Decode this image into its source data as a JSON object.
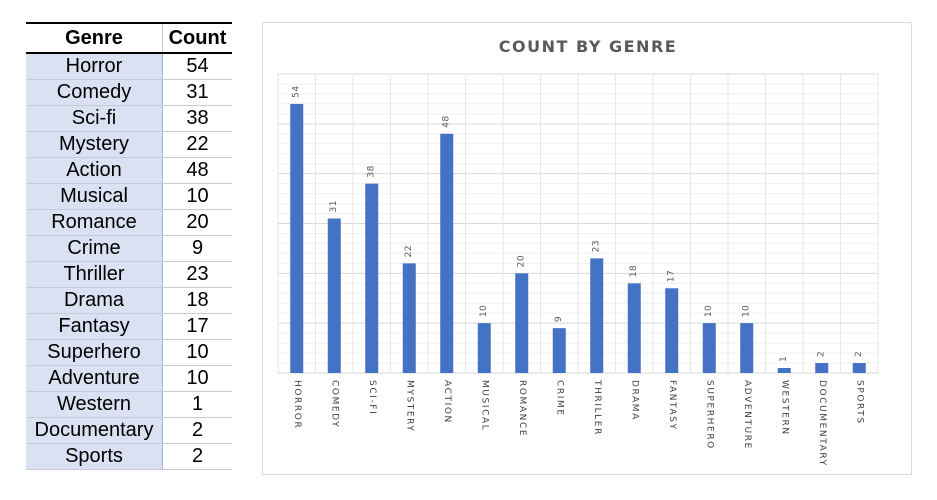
{
  "table": {
    "headers": [
      "Genre",
      "Count"
    ],
    "rows": [
      {
        "genre": "Horror",
        "count": "54"
      },
      {
        "genre": "Comedy",
        "count": "31"
      },
      {
        "genre": "Sci-fi",
        "count": "38"
      },
      {
        "genre": "Mystery",
        "count": "22"
      },
      {
        "genre": "Action",
        "count": "48"
      },
      {
        "genre": "Musical",
        "count": "10"
      },
      {
        "genre": "Romance",
        "count": "20"
      },
      {
        "genre": "Crime",
        "count": "9"
      },
      {
        "genre": "Thriller",
        "count": "23"
      },
      {
        "genre": "Drama",
        "count": "18"
      },
      {
        "genre": "Fantasy",
        "count": "17"
      },
      {
        "genre": "Superhero",
        "count": "10"
      },
      {
        "genre": "Adventure",
        "count": "10"
      },
      {
        "genre": "Western",
        "count": "1"
      },
      {
        "genre": "Documentary",
        "count": "2"
      },
      {
        "genre": "Sports",
        "count": "2"
      }
    ]
  },
  "chart_data": {
    "type": "bar",
    "title": "COUNT BY GENRE",
    "categories": [
      "HORROR",
      "COMEDY",
      "SCI-FI",
      "MYSTERY",
      "ACTION",
      "MUSICAL",
      "ROMANCE",
      "CRIME",
      "THRILLER",
      "DRAMA",
      "FANTASY",
      "SUPERHERO",
      "ADVENTURE",
      "WESTERN",
      "DOCUMENTARY",
      "SPORTS"
    ],
    "values": [
      54,
      31,
      38,
      22,
      48,
      10,
      20,
      9,
      23,
      18,
      17,
      10,
      10,
      1,
      2,
      2
    ],
    "xlabel": "",
    "ylabel": "",
    "ylim": [
      0,
      60
    ],
    "grid": true,
    "legend": "none",
    "bar_color": "#4472c4",
    "grid_color": "#e6e6e6"
  }
}
